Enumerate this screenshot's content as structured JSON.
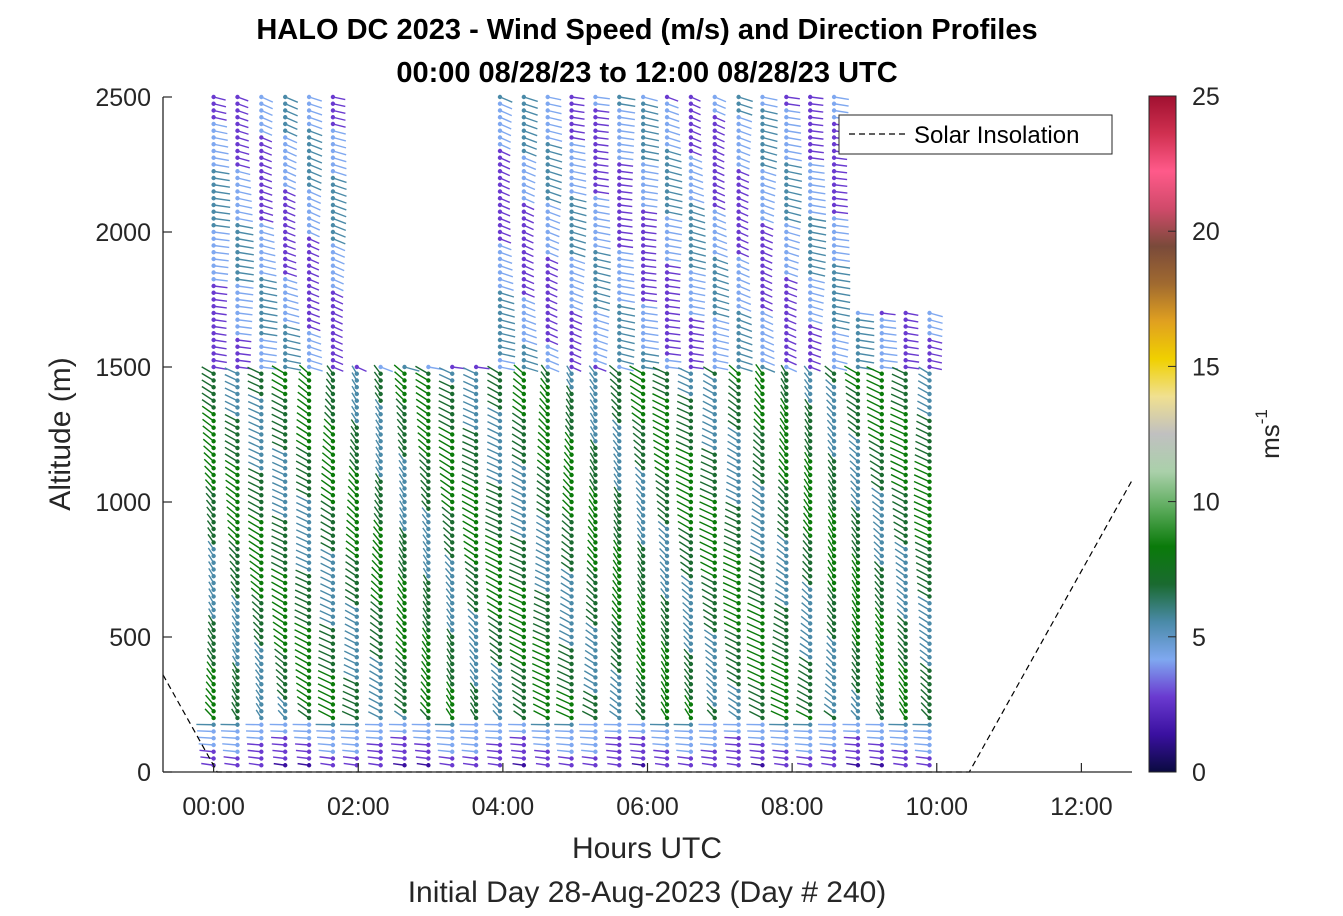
{
  "chart_data": {
    "type": "scatter",
    "title": "HALO DC 2023 - Wind Speed (m/s) and Direction Profiles",
    "subtitle": "00:00 08/28/23 to 12:00 08/28/23  UTC",
    "xlabel": "Hours UTC",
    "ylabel": "Altitude (m)",
    "footer": "Initial Day 28-Aug-2023 (Day # 240)",
    "xlim": [
      -0.7,
      12.7
    ],
    "ylim": [
      0,
      2500
    ],
    "x_ticks": [
      "00:00",
      "02:00",
      "04:00",
      "06:00",
      "08:00",
      "10:00",
      "12:00"
    ],
    "x_tick_values": [
      0,
      2,
      4,
      6,
      8,
      10,
      12
    ],
    "y_ticks": [
      "0",
      "500",
      "1000",
      "1500",
      "2000",
      "2500"
    ],
    "y_tick_values": [
      0,
      500,
      1000,
      1500,
      2000,
      2500
    ],
    "grid": false,
    "colorbar": {
      "label_base": "ms",
      "label_sup": "-1",
      "ticks": [
        "0",
        "5",
        "10",
        "15",
        "20",
        "25"
      ],
      "tick_values": [
        0,
        5,
        10,
        15,
        20,
        25
      ],
      "range": [
        0,
        25
      ],
      "colors": [
        "#0a0a40",
        "#3a10a0",
        "#6a3ad0",
        "#7fa8f0",
        "#4a8aa8",
        "#1a6a30",
        "#0a7a0a",
        "#5aaa5a",
        "#aad0aa",
        "#c0c0c0",
        "#f0e090",
        "#f0d000",
        "#e0a020",
        "#a06a30",
        "#7a4a3a",
        "#d04a6a",
        "#ff5a8a",
        "#d03050",
        "#a01030"
      ]
    },
    "legend": {
      "position": "top-right",
      "entries": [
        {
          "name": "Solar Insolation",
          "style": "dashed"
        }
      ]
    },
    "profiles": {
      "time_start": 0.0,
      "time_end": 9.9,
      "time_step": 0.33,
      "altitude_step": 25,
      "description_bands": [
        {
          "alt_range": [
            0,
            200
          ],
          "speed": 3,
          "direction_deg": 290
        },
        {
          "alt_range": [
            200,
            1500
          ],
          "speed": 7,
          "direction_deg": 330
        },
        {
          "alt_range": [
            1500,
            2500
          ],
          "speed": 4,
          "direction_deg": 120
        }
      ]
    },
    "solar_insolation": {
      "x": [
        -0.7,
        0.05,
        10.45,
        12.7
      ],
      "y": [
        360,
        0,
        0,
        1080
      ]
    }
  }
}
